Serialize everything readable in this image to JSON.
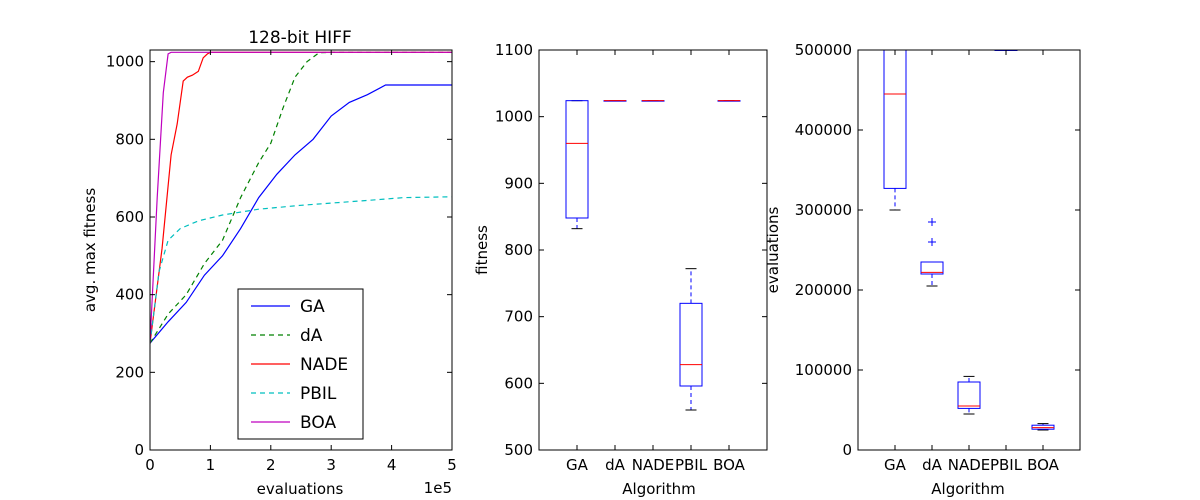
{
  "chart_data": [
    {
      "type": "line",
      "title": "128-bit HIFF",
      "xlabel": "evaluations",
      "ylabel": "avg. max fitness",
      "x_offset_label": "1e5",
      "xlim": [
        0,
        5
      ],
      "ylim": [
        0,
        1030
      ],
      "xticks": [
        0,
        1,
        2,
        3,
        4,
        5
      ],
      "yticks": [
        0,
        200,
        400,
        600,
        800,
        1000
      ],
      "legend": "lower-center",
      "series": [
        {
          "name": "GA",
          "color": "#0000ff",
          "dash": "solid",
          "x": [
            0,
            0.3,
            0.6,
            0.9,
            1.2,
            1.5,
            1.8,
            2.1,
            2.4,
            2.7,
            3.0,
            3.3,
            3.6,
            3.9,
            4.2,
            5.0
          ],
          "y": [
            275,
            330,
            380,
            450,
            500,
            570,
            650,
            710,
            760,
            800,
            860,
            895,
            915,
            940,
            940,
            940
          ]
        },
        {
          "name": "dA",
          "color": "#008000",
          "dash": "dashed",
          "x": [
            0,
            0.3,
            0.6,
            0.9,
            1.2,
            1.5,
            1.8,
            2.0,
            2.2,
            2.4,
            2.6,
            2.8,
            3.0,
            5.0
          ],
          "y": [
            275,
            350,
            400,
            480,
            540,
            650,
            740,
            790,
            880,
            960,
            1000,
            1023,
            1024,
            1024
          ]
        },
        {
          "name": "NADE",
          "color": "#ff0000",
          "dash": "solid",
          "x": [
            0,
            0.2,
            0.35,
            0.45,
            0.55,
            0.62,
            0.7,
            0.8,
            0.88,
            0.95,
            1.0,
            5.0
          ],
          "y": [
            275,
            520,
            760,
            840,
            950,
            960,
            965,
            975,
            1010,
            1020,
            1024,
            1024
          ]
        },
        {
          "name": "PBIL",
          "color": "#00bfbf",
          "dash": "dashed",
          "x": [
            0,
            0.15,
            0.3,
            0.5,
            0.8,
            1.2,
            1.8,
            2.5,
            3.2,
            3.8,
            4.2,
            5.0
          ],
          "y": [
            275,
            460,
            540,
            570,
            590,
            605,
            620,
            630,
            638,
            645,
            650,
            652
          ]
        },
        {
          "name": "BOA",
          "color": "#bf00bf",
          "dash": "solid",
          "x": [
            0,
            0.12,
            0.22,
            0.3,
            0.35,
            5.0
          ],
          "y": [
            275,
            650,
            920,
            1020,
            1024,
            1024
          ]
        }
      ]
    },
    {
      "type": "box",
      "title": "",
      "xlabel": "Algorithm",
      "ylabel": "fitness",
      "categories": [
        "GA",
        "dA",
        "NADE",
        "PBIL",
        "BOA"
      ],
      "ylim": [
        500,
        1100
      ],
      "yticks": [
        500,
        600,
        700,
        800,
        900,
        1000,
        1100
      ],
      "box_color": "#0000ff",
      "median_color": "#ff0000",
      "boxes": [
        {
          "whislo": 832,
          "q1": 848,
          "med": 960,
          "q3": 1024,
          "whishi": 1024,
          "fliers": []
        },
        {
          "whislo": 1024,
          "q1": 1024,
          "med": 1024,
          "q3": 1024,
          "whishi": 1024,
          "fliers": []
        },
        {
          "whislo": 1024,
          "q1": 1024,
          "med": 1024,
          "q3": 1024,
          "whishi": 1024,
          "fliers": []
        },
        {
          "whislo": 560,
          "q1": 596,
          "med": 628,
          "q3": 720,
          "whishi": 772,
          "fliers": []
        },
        {
          "whislo": 1024,
          "q1": 1024,
          "med": 1024,
          "q3": 1024,
          "whishi": 1024,
          "fliers": []
        }
      ]
    },
    {
      "type": "box",
      "title": "",
      "xlabel": "Algorithm",
      "ylabel": "evaluations",
      "categories": [
        "GA",
        "dA",
        "NADE",
        "PBIL",
        "BOA"
      ],
      "ylim": [
        0,
        500000
      ],
      "yticks": [
        0,
        100000,
        200000,
        300000,
        400000,
        500000
      ],
      "box_color": "#0000ff",
      "median_color": "#ff0000",
      "boxes": [
        {
          "whislo": 300000,
          "q1": 327000,
          "med": 445000,
          "q3": 500000,
          "whishi": 500000,
          "fliers": []
        },
        {
          "whislo": 205000,
          "q1": 220000,
          "med": 222000,
          "q3": 235000,
          "whishi": 235000,
          "fliers": [
            260000,
            285000
          ]
        },
        {
          "whislo": 45000,
          "q1": 52000,
          "med": 55000,
          "q3": 85000,
          "whishi": 92000,
          "fliers": []
        },
        {
          "whislo": 500000,
          "q1": 500000,
          "med": 500000,
          "q3": 500000,
          "whishi": 500000,
          "fliers": []
        },
        {
          "whislo": 25000,
          "q1": 26000,
          "med": 28000,
          "q3": 31000,
          "whishi": 33000,
          "fliers": []
        }
      ]
    }
  ]
}
